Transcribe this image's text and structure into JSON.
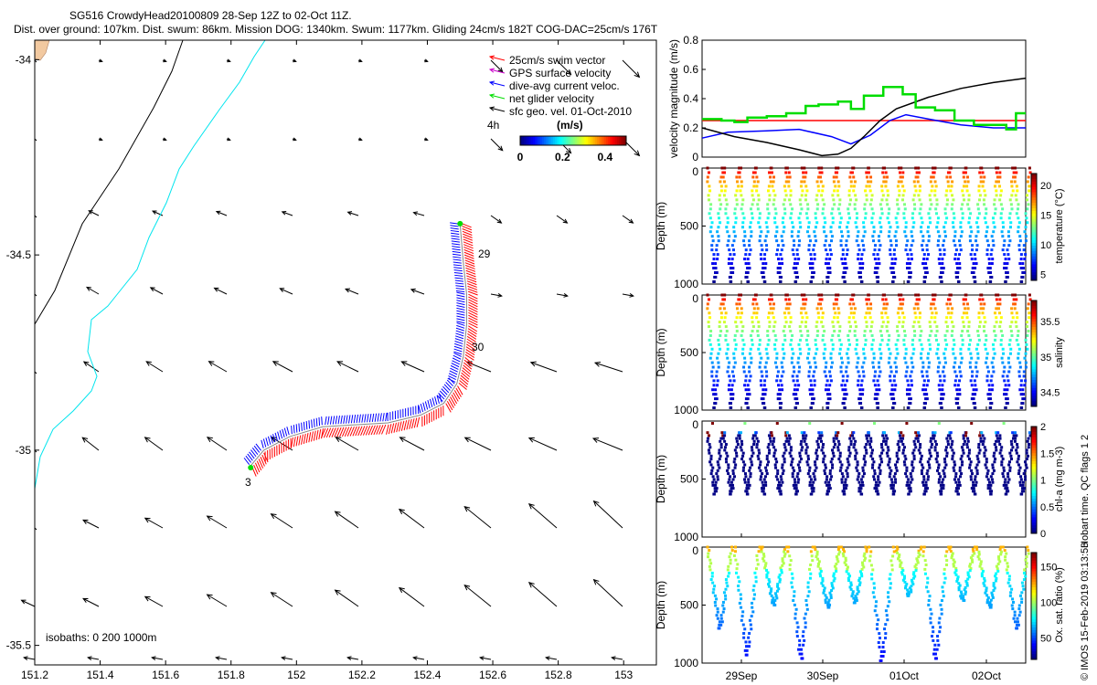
{
  "header": {
    "title": "SG516 CrowdyHead20100809 28-Sep 12Z to 02-Oct 11Z.",
    "subtitle": "Dist. over ground: 107km. Dist. swum: 86km. Mission DOG: 1340km. Swum: 1177km. Gliding 24cm/s 182T COG-DAC=25cm/s 176T"
  },
  "colors": {
    "swim": "#ff0000",
    "gps": "#cc00cc",
    "dac": "#0000ff",
    "net": "#00dd00",
    "geo": "#000000",
    "coast": "#00e5ee",
    "isobath": "#000000",
    "land": "#f2c9a0"
  },
  "chart_data": [
    {
      "type": "scatter",
      "title": "Track and velocity map",
      "xlim": [
        151.2,
        153.1
      ],
      "ylim": [
        -35.55,
        -33.95
      ],
      "xticks": [
        "151.2",
        "151.4",
        "151.6",
        "151.8",
        "152",
        "152.2",
        "152.4",
        "152.6",
        "152.8",
        "153"
      ],
      "yticks": [
        "-34",
        "-34.5",
        "-35",
        "-35.5"
      ],
      "legend": [
        "25cm/s swim vector",
        "GPS surface velocity",
        "dive-avg current veloc.",
        "net glider velocity",
        "sfc geo. vel. 01-Oct-2010"
      ],
      "legend_4h": "4h",
      "colorbar": {
        "label": "(m/s)",
        "ticks": [
          "0",
          "0.2",
          "0.4"
        ],
        "range": [
          0,
          0.5
        ]
      },
      "isobaths_label": "isobaths: 0   200   1000m",
      "track_labels": [
        "29",
        "30",
        "3"
      ],
      "track": [
        [
          152.5,
          -34.42
        ],
        [
          152.51,
          -34.52
        ],
        [
          152.52,
          -34.6
        ],
        [
          152.52,
          -34.68
        ],
        [
          152.51,
          -34.76
        ],
        [
          152.49,
          -34.83
        ],
        [
          152.45,
          -34.88
        ],
        [
          152.38,
          -34.91
        ],
        [
          152.28,
          -34.93
        ],
        [
          152.18,
          -34.935
        ],
        [
          152.08,
          -34.94
        ],
        [
          151.98,
          -34.965
        ],
        [
          151.9,
          -35.0
        ],
        [
          151.86,
          -35.04
        ]
      ]
    },
    {
      "type": "line",
      "ylabel": "velocity magnitude (m/s)",
      "ylim": [
        0,
        0.8
      ],
      "yticks": [
        "0",
        "0.2",
        "0.4",
        "0.6",
        "0.8"
      ],
      "series": [
        {
          "name": "swim",
          "color": "red",
          "x": [
            0,
            1
          ],
          "values": [
            0.25,
            0.25
          ]
        },
        {
          "name": "dive-avg current",
          "color": "blue",
          "x": [
            0,
            0.08,
            0.2,
            0.3,
            0.4,
            0.46,
            0.52,
            0.58,
            0.63,
            0.7,
            0.8,
            0.9,
            1.0
          ],
          "values": [
            0.13,
            0.17,
            0.18,
            0.19,
            0.14,
            0.09,
            0.15,
            0.25,
            0.29,
            0.26,
            0.22,
            0.2,
            0.2
          ]
        },
        {
          "name": "sfc geostrophic",
          "color": "black",
          "x": [
            0,
            0.1,
            0.2,
            0.3,
            0.37,
            0.42,
            0.46,
            0.5,
            0.55,
            0.6,
            0.7,
            0.8,
            0.9,
            1.0
          ],
          "values": [
            0.2,
            0.14,
            0.1,
            0.05,
            0.01,
            0.02,
            0.06,
            0.14,
            0.25,
            0.33,
            0.41,
            0.47,
            0.51,
            0.54
          ]
        },
        {
          "name": "net glider",
          "color": "green",
          "x": [
            0,
            0.06,
            0.1,
            0.14,
            0.2,
            0.26,
            0.32,
            0.36,
            0.42,
            0.46,
            0.5,
            0.56,
            0.62,
            0.66,
            0.72,
            0.78,
            0.84,
            0.9,
            0.94,
            0.97
          ],
          "values": [
            0.26,
            0.25,
            0.24,
            0.27,
            0.28,
            0.3,
            0.35,
            0.36,
            0.38,
            0.33,
            0.42,
            0.48,
            0.43,
            0.34,
            0.32,
            0.25,
            0.22,
            0.22,
            0.19,
            0.3
          ]
        }
      ]
    },
    {
      "type": "scatter",
      "ylabel": "Depth (m)",
      "yticks": [
        "0",
        "500",
        "1000"
      ],
      "colorbar": {
        "label": "temperature (°C)",
        "ticks": [
          "5",
          "10",
          "15",
          "20"
        ],
        "range": [
          4,
          22
        ]
      },
      "max_depth": 980,
      "dives": 20
    },
    {
      "type": "scatter",
      "ylabel": "Depth (m)",
      "yticks": [
        "0",
        "500",
        "1000"
      ],
      "colorbar": {
        "label": "salinity",
        "ticks": [
          "34.5",
          "35",
          "35.5"
        ],
        "range": [
          34.3,
          35.8
        ]
      },
      "max_depth": 980,
      "dives": 20
    },
    {
      "type": "scatter",
      "ylabel": "Depth (m)",
      "yticks": [
        "0",
        "500",
        "1000"
      ],
      "colorbar": {
        "label": "chl-a (mg m-3)",
        "ticks": [
          "0",
          "0.5",
          "1",
          "1.5",
          "2"
        ],
        "range": [
          0,
          2
        ]
      },
      "max_depth": 630,
      "dives": 20
    },
    {
      "type": "scatter",
      "ylabel": "Depth (m)",
      "yticks": [
        "0",
        "500",
        "1000"
      ],
      "colorbar": {
        "label": "Ox. sat. ratio (%)",
        "ticks": [
          "50",
          "100",
          "150"
        ],
        "range": [
          20,
          170
        ]
      },
      "max_depth": 980,
      "dives": 12,
      "xlabels": [
        "29Sep",
        "30Sep",
        "01Oct",
        "02Oct"
      ]
    }
  ],
  "side_text": {
    "qc": "Hobart time. QC flags 1  2",
    "credit": "© IMOS 15-Feb-2019 03:13:53"
  }
}
